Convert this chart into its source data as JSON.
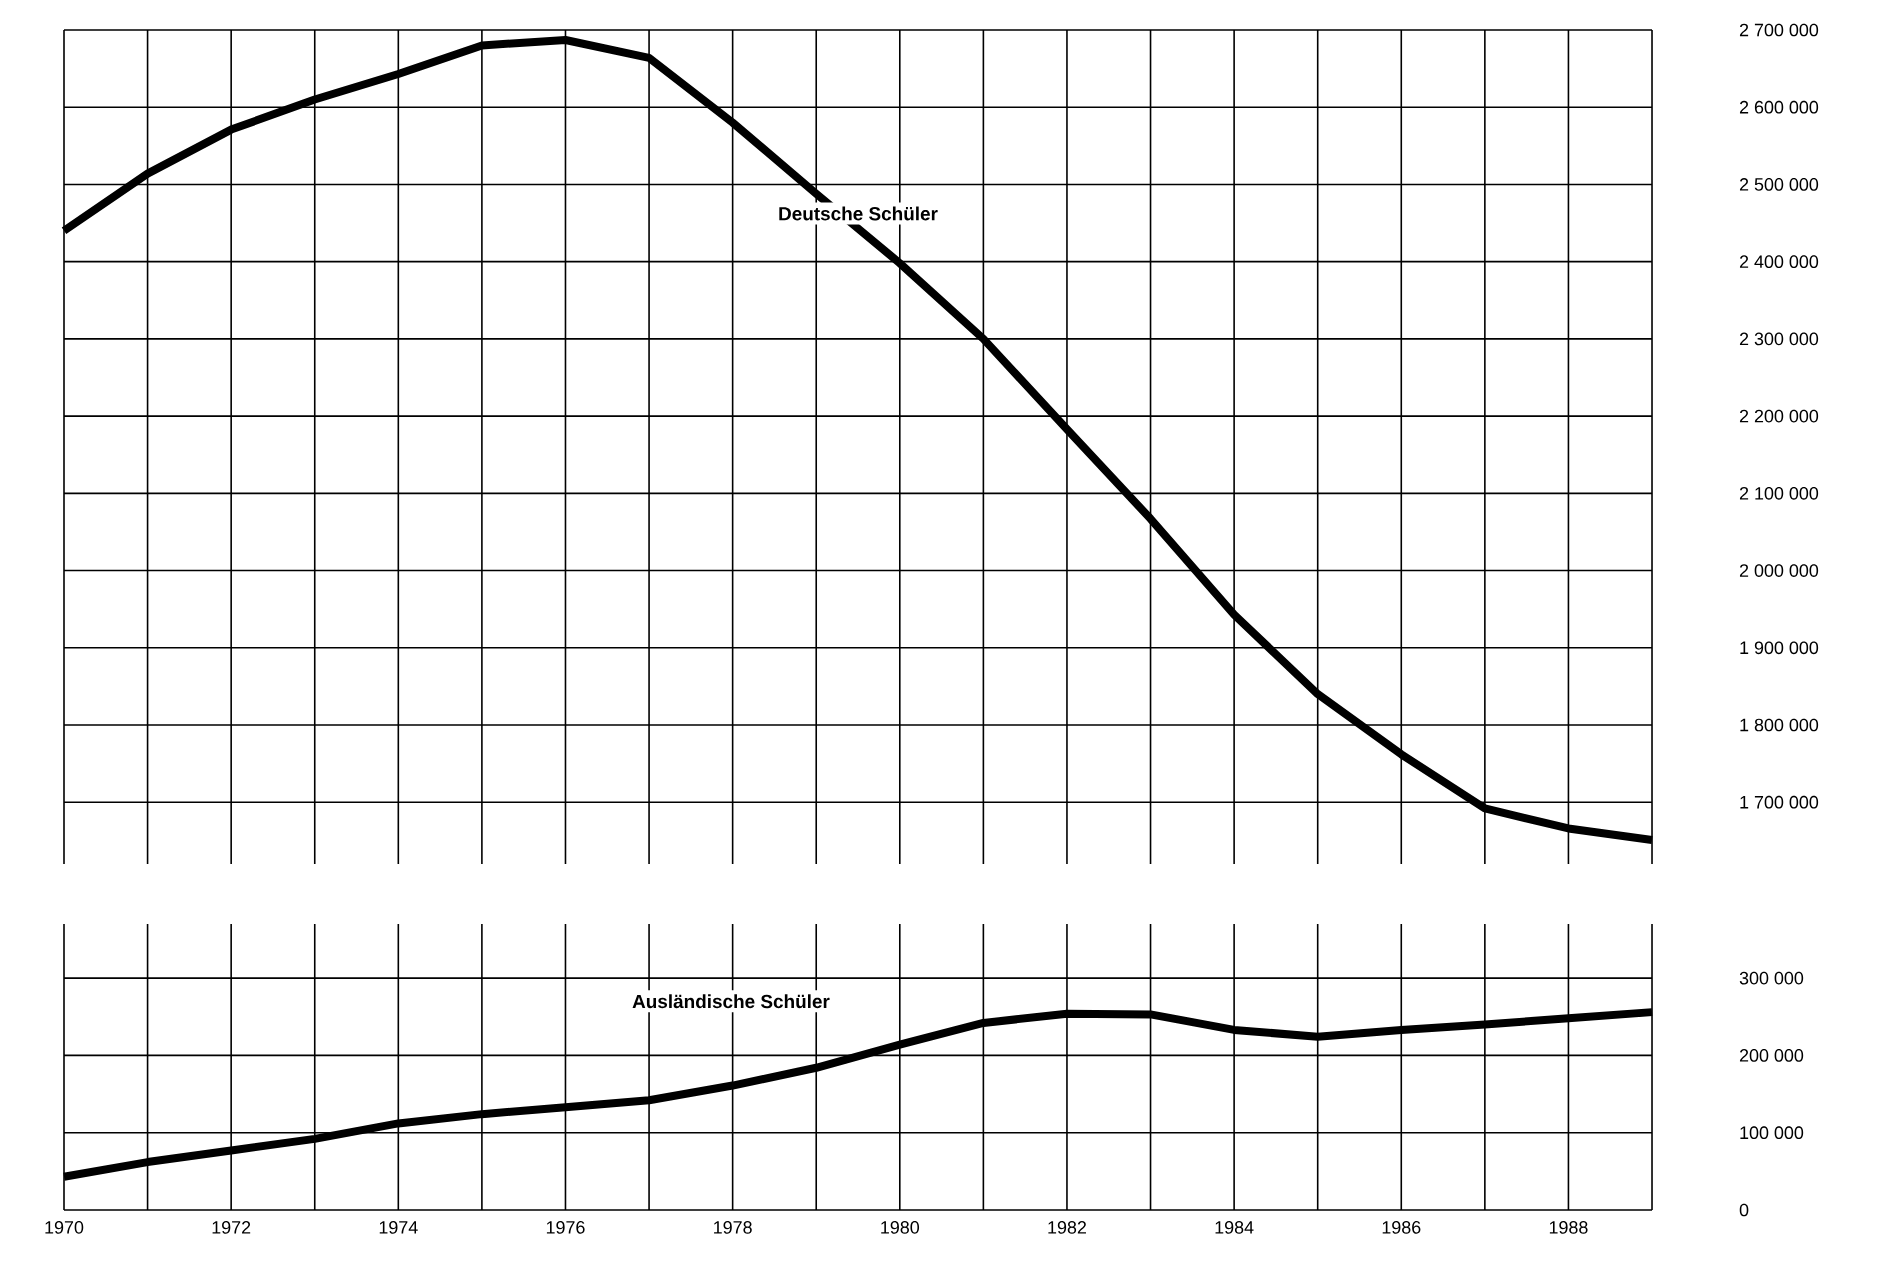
{
  "chart_data": [
    {
      "type": "line",
      "x": [
        1970,
        1971,
        1972,
        1973,
        1974,
        1975,
        1976,
        1977,
        1978,
        1979,
        1980,
        1981,
        1982,
        1983,
        1984,
        1985,
        1986,
        1987,
        1988,
        1989
      ],
      "series": [
        {
          "name": "Deutsche Schüler",
          "color": "#000000",
          "values": [
            2440000,
            2514000,
            2571000,
            2610000,
            2643000,
            2680000,
            2687000,
            2664000,
            2580000,
            2488000,
            2398000,
            2300000,
            2183000,
            2067000,
            1943000,
            1840000,
            1762000,
            1692000,
            1666000,
            1651000
          ]
        }
      ],
      "xlim": [
        1970,
        1989
      ],
      "ylim": [
        1620000,
        2700000
      ],
      "xticks": [
        1970,
        {
          "value": 1971,
          "label": null
        },
        1972,
        {
          "value": 1973,
          "label": null
        },
        1974,
        {
          "value": 1975,
          "label": null
        },
        1976,
        {
          "value": 1977,
          "label": null
        },
        1978,
        {
          "value": 1979,
          "label": null
        },
        1980,
        {
          "value": 1981,
          "label": null
        },
        1982,
        {
          "value": 1983,
          "label": null
        },
        1984,
        {
          "value": 1985,
          "label": null
        },
        1986,
        {
          "value": 1987,
          "label": null
        },
        1988,
        {
          "value": 1989,
          "label": null
        }
      ],
      "yticks": [
        {
          "value": 1700000,
          "label": "1 700 000"
        },
        {
          "value": 1800000,
          "label": "1 800 000"
        },
        {
          "value": 1900000,
          "label": "1 900 000"
        },
        {
          "value": 2000000,
          "label": "2 000 000"
        },
        {
          "value": 2100000,
          "label": "2 100 000"
        },
        {
          "value": 2200000,
          "label": "2 200 000"
        },
        {
          "value": 2300000,
          "label": "2 300 000"
        },
        {
          "value": 2400000,
          "label": "2 400 000"
        },
        {
          "value": 2500000,
          "label": "2 500 000"
        },
        {
          "value": 2600000,
          "label": "2 600 000"
        },
        {
          "value": 2700000,
          "label": "2 700 000"
        }
      ],
      "tick_labels": "y",
      "grid": true,
      "legend": false,
      "marker": "none",
      "line_style": "solid"
    },
    {
      "type": "line",
      "x": [
        1970,
        1971,
        1972,
        1973,
        1974,
        1975,
        1976,
        1977,
        1978,
        1979,
        1980,
        1981,
        1982,
        1983,
        1984,
        1985,
        1986,
        1987,
        1988,
        1989
      ],
      "series": [
        {
          "name": "Ausländische Schüler",
          "color": "#000000",
          "values": [
            43000,
            62000,
            77000,
            92000,
            112000,
            124000,
            133000,
            142000,
            161000,
            184000,
            214000,
            242000,
            254000,
            253000,
            233000,
            224000,
            233000,
            240000,
            248000,
            256000
          ]
        }
      ],
      "xlim": [
        1970,
        1989
      ],
      "ylim": [
        0,
        370000
      ],
      "xticks": [
        1970,
        {
          "value": 1971,
          "label": null
        },
        1972,
        {
          "value": 1973,
          "label": null
        },
        1974,
        {
          "value": 1975,
          "label": null
        },
        1976,
        {
          "value": 1977,
          "label": null
        },
        1978,
        {
          "value": 1979,
          "label": null
        },
        1980,
        {
          "value": 1981,
          "label": null
        },
        1982,
        {
          "value": 1983,
          "label": null
        },
        1984,
        {
          "value": 1985,
          "label": null
        },
        1986,
        {
          "value": 1987,
          "label": null
        },
        1988,
        {
          "value": 1989,
          "label": null
        }
      ],
      "yticks": [
        0,
        {
          "value": 100000,
          "label": "100 000"
        },
        {
          "value": 200000,
          "label": "200 000"
        },
        {
          "value": 300000,
          "label": "300 000"
        }
      ],
      "grid": true,
      "legend": false,
      "marker": "none",
      "line_style": "solid"
    }
  ]
}
